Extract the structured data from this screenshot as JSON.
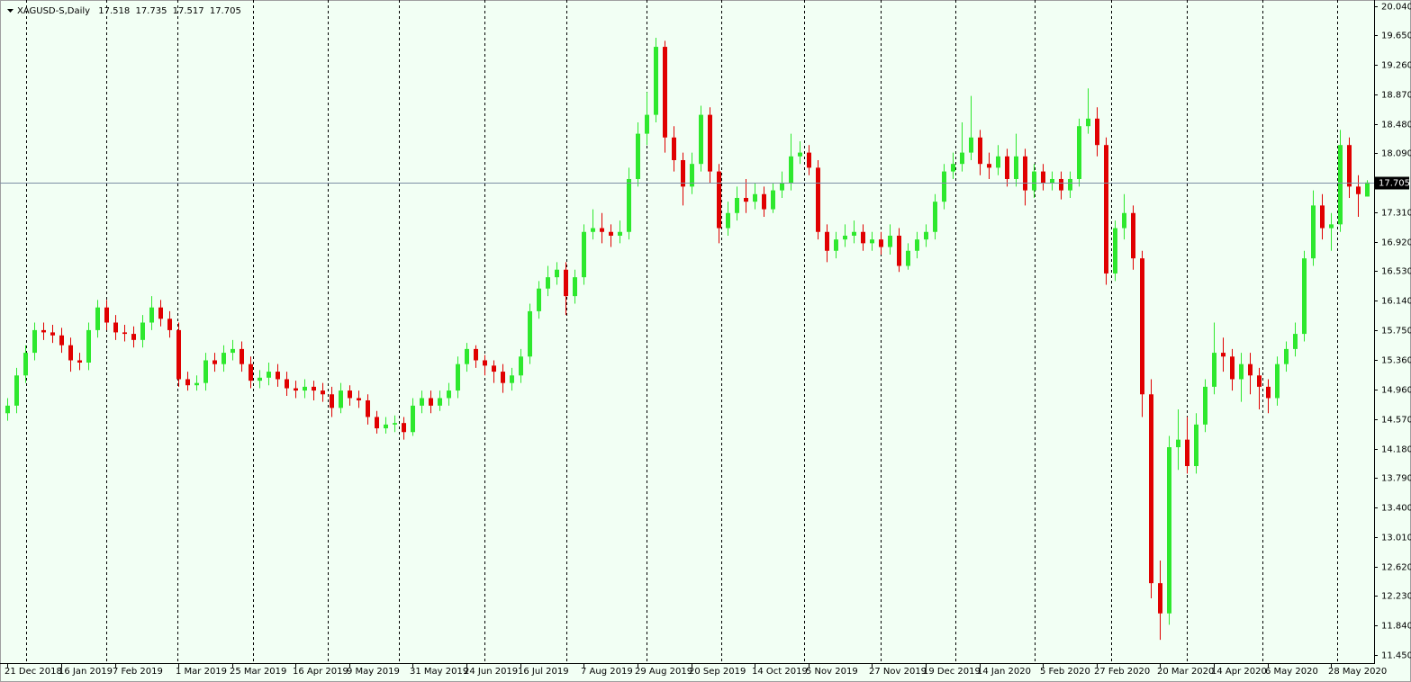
{
  "chart_data": {
    "type": "candlestick",
    "title": "XAGUSD-S,Daily",
    "up_color": "#2ee82e",
    "down_color": "#e00000",
    "price_line_color": "#7d8ea4",
    "ylim": [
      11.33,
      20.12
    ],
    "yticks": [
      {
        "value": 20.04,
        "label": "20.040"
      },
      {
        "value": 19.65,
        "label": "19.650"
      },
      {
        "value": 19.26,
        "label": "19.260"
      },
      {
        "value": 18.87,
        "label": "18.870"
      },
      {
        "value": 18.48,
        "label": "18.480"
      },
      {
        "value": 18.09,
        "label": "18.090"
      },
      {
        "value": 17.31,
        "label": "17.310"
      },
      {
        "value": 16.92,
        "label": "16.920"
      },
      {
        "value": 16.53,
        "label": "16.530"
      },
      {
        "value": 16.14,
        "label": "16.140"
      },
      {
        "value": 15.75,
        "label": "15.750"
      },
      {
        "value": 15.36,
        "label": "15.360"
      },
      {
        "value": 14.96,
        "label": "14.960"
      },
      {
        "value": 14.57,
        "label": "14.570"
      },
      {
        "value": 14.18,
        "label": "14.180"
      },
      {
        "value": 13.79,
        "label": "13.790"
      },
      {
        "value": 13.4,
        "label": "13.400"
      },
      {
        "value": 13.01,
        "label": "13.010"
      },
      {
        "value": 12.62,
        "label": "12.620"
      },
      {
        "value": 12.23,
        "label": "12.230"
      },
      {
        "value": 11.84,
        "label": "11.840"
      },
      {
        "value": 11.45,
        "label": "11.450"
      }
    ],
    "categories": [
      "21 Dec 2018",
      null,
      null,
      null,
      null,
      null,
      "16 Jan 2019",
      null,
      null,
      null,
      null,
      null,
      "7 Feb 2019",
      null,
      null,
      null,
      null,
      null,
      null,
      "1 Mar 2019",
      null,
      null,
      null,
      null,
      null,
      "25 Mar 2019",
      null,
      null,
      null,
      null,
      null,
      null,
      "16 Apr 2019",
      null,
      null,
      null,
      null,
      null,
      "9 May 2019",
      null,
      null,
      null,
      null,
      null,
      null,
      "31 May 2019",
      null,
      null,
      null,
      null,
      null,
      "24 Jun 2019",
      null,
      null,
      null,
      null,
      null,
      "16 Jul 2019",
      null,
      null,
      null,
      null,
      null,
      null,
      "7 Aug 2019",
      null,
      null,
      null,
      null,
      null,
      "29 Aug 2019",
      null,
      null,
      null,
      null,
      null,
      "20 Sep 2019",
      null,
      null,
      null,
      null,
      null,
      null,
      "14 Oct 2019",
      null,
      null,
      null,
      null,
      null,
      "5 Nov 2019",
      null,
      null,
      null,
      null,
      null,
      null,
      "27 Nov 2019",
      null,
      null,
      null,
      null,
      null,
      "19 Dec 2019",
      null,
      null,
      null,
      null,
      null,
      "14 Jan 2020",
      null,
      null,
      null,
      null,
      null,
      null,
      "5 Feb 2020",
      null,
      null,
      null,
      null,
      null,
      "27 Feb 2020",
      null,
      null,
      null,
      null,
      null,
      null,
      "20 Mar 2020",
      null,
      null,
      null,
      null,
      null,
      "14 Apr 2020",
      null,
      null,
      null,
      null,
      null,
      "6 May 2020",
      null,
      null,
      null,
      null,
      null,
      null,
      "28 May 2020",
      null,
      null,
      null,
      null
    ],
    "ohlc": [
      [
        14.65,
        14.85,
        14.55,
        14.75
      ],
      [
        14.75,
        15.25,
        14.65,
        15.15
      ],
      [
        15.15,
        15.55,
        15.05,
        15.45
      ],
      [
        15.45,
        15.85,
        15.35,
        15.75
      ],
      [
        15.75,
        15.85,
        15.62,
        15.72
      ],
      [
        15.72,
        15.82,
        15.58,
        15.68
      ],
      [
        15.68,
        15.78,
        15.45,
        15.55
      ],
      [
        15.55,
        15.65,
        15.2,
        15.35
      ],
      [
        15.35,
        15.45,
        15.22,
        15.32
      ],
      [
        15.32,
        15.85,
        15.22,
        15.75
      ],
      [
        15.75,
        16.15,
        15.65,
        16.05
      ],
      [
        16.05,
        16.15,
        15.75,
        15.85
      ],
      [
        15.85,
        15.95,
        15.62,
        15.72
      ],
      [
        15.72,
        15.82,
        15.6,
        15.7
      ],
      [
        15.7,
        15.8,
        15.52,
        15.62
      ],
      [
        15.62,
        15.95,
        15.52,
        15.85
      ],
      [
        15.85,
        16.2,
        15.75,
        16.05
      ],
      [
        16.05,
        16.15,
        15.8,
        15.9
      ],
      [
        15.9,
        16.0,
        15.65,
        15.75
      ],
      [
        15.75,
        15.85,
        15.0,
        15.1
      ],
      [
        15.1,
        15.2,
        14.95,
        15.02
      ],
      [
        15.02,
        15.15,
        14.95,
        15.05
      ],
      [
        15.05,
        15.45,
        14.95,
        15.35
      ],
      [
        15.35,
        15.45,
        15.2,
        15.3
      ],
      [
        15.3,
        15.55,
        15.2,
        15.45
      ],
      [
        15.45,
        15.62,
        15.35,
        15.5
      ],
      [
        15.5,
        15.6,
        15.2,
        15.3
      ],
      [
        15.3,
        15.4,
        14.98,
        15.08
      ],
      [
        15.08,
        15.22,
        14.98,
        15.12
      ],
      [
        15.12,
        15.32,
        15.02,
        15.2
      ],
      [
        15.2,
        15.3,
        15.0,
        15.1
      ],
      [
        15.1,
        15.2,
        14.88,
        14.98
      ],
      [
        14.98,
        15.08,
        14.85,
        14.95
      ],
      [
        14.95,
        15.1,
        14.85,
        15.0
      ],
      [
        15.0,
        15.08,
        14.82,
        14.95
      ],
      [
        14.95,
        15.05,
        14.8,
        14.9
      ],
      [
        14.9,
        15.0,
        14.6,
        14.72
      ],
      [
        14.72,
        15.05,
        14.65,
        14.95
      ],
      [
        14.95,
        15.02,
        14.75,
        14.85
      ],
      [
        14.85,
        14.95,
        14.72,
        14.82
      ],
      [
        14.82,
        14.9,
        14.5,
        14.6
      ],
      [
        14.6,
        14.68,
        14.38,
        14.45
      ],
      [
        14.45,
        14.6,
        14.38,
        14.5
      ],
      [
        14.5,
        14.62,
        14.4,
        14.52
      ],
      [
        14.52,
        14.6,
        14.3,
        14.4
      ],
      [
        14.4,
        14.85,
        14.35,
        14.75
      ],
      [
        14.75,
        14.95,
        14.65,
        14.85
      ],
      [
        14.85,
        14.95,
        14.65,
        14.75
      ],
      [
        14.75,
        14.95,
        14.68,
        14.85
      ],
      [
        14.85,
        15.05,
        14.75,
        14.95
      ],
      [
        14.95,
        15.4,
        14.85,
        15.3
      ],
      [
        15.3,
        15.58,
        15.2,
        15.5
      ],
      [
        15.5,
        15.55,
        15.25,
        15.35
      ],
      [
        15.35,
        15.42,
        15.15,
        15.28
      ],
      [
        15.28,
        15.35,
        15.05,
        15.2
      ],
      [
        15.2,
        15.3,
        14.92,
        15.05
      ],
      [
        15.05,
        15.25,
        14.95,
        15.15
      ],
      [
        15.15,
        15.5,
        15.05,
        15.4
      ],
      [
        15.4,
        16.1,
        15.3,
        16.0
      ],
      [
        16.0,
        16.4,
        15.9,
        16.3
      ],
      [
        16.3,
        16.6,
        16.2,
        16.45
      ],
      [
        16.45,
        16.65,
        16.35,
        16.55
      ],
      [
        16.55,
        16.65,
        15.95,
        16.2
      ],
      [
        16.2,
        16.55,
        16.1,
        16.45
      ],
      [
        16.45,
        17.15,
        16.35,
        17.05
      ],
      [
        17.05,
        17.35,
        16.95,
        17.1
      ],
      [
        17.1,
        17.3,
        16.9,
        17.05
      ],
      [
        17.05,
        17.15,
        16.85,
        17.0
      ],
      [
        17.0,
        17.2,
        16.9,
        17.05
      ],
      [
        17.05,
        17.9,
        16.95,
        17.75
      ],
      [
        17.75,
        18.5,
        17.65,
        18.35
      ],
      [
        18.35,
        18.9,
        18.2,
        18.6
      ],
      [
        18.6,
        19.62,
        18.5,
        19.5
      ],
      [
        19.5,
        19.58,
        18.1,
        18.3
      ],
      [
        18.3,
        18.45,
        17.85,
        18.0
      ],
      [
        18.0,
        18.1,
        17.4,
        17.65
      ],
      [
        17.65,
        18.1,
        17.55,
        17.95
      ],
      [
        17.95,
        18.72,
        17.85,
        18.6
      ],
      [
        18.6,
        18.7,
        17.7,
        17.85
      ],
      [
        17.85,
        17.95,
        16.9,
        17.1
      ],
      [
        17.1,
        17.45,
        17.0,
        17.3
      ],
      [
        17.3,
        17.65,
        17.2,
        17.5
      ],
      [
        17.5,
        17.75,
        17.3,
        17.45
      ],
      [
        17.45,
        17.7,
        17.35,
        17.55
      ],
      [
        17.55,
        17.65,
        17.25,
        17.35
      ],
      [
        17.35,
        17.7,
        17.3,
        17.6
      ],
      [
        17.6,
        17.85,
        17.5,
        17.7
      ],
      [
        17.7,
        18.35,
        17.6,
        18.05
      ],
      [
        18.05,
        18.25,
        17.95,
        18.1
      ],
      [
        18.1,
        18.2,
        17.8,
        17.9
      ],
      [
        17.9,
        18.0,
        16.95,
        17.05
      ],
      [
        17.05,
        17.15,
        16.65,
        16.8
      ],
      [
        16.8,
        17.05,
        16.7,
        16.95
      ],
      [
        16.95,
        17.15,
        16.85,
        17.0
      ],
      [
        17.0,
        17.2,
        16.9,
        17.05
      ],
      [
        17.05,
        17.15,
        16.8,
        16.9
      ],
      [
        16.9,
        17.05,
        16.8,
        16.95
      ],
      [
        16.95,
        17.05,
        16.75,
        16.85
      ],
      [
        16.85,
        17.15,
        16.75,
        17.0
      ],
      [
        17.0,
        17.1,
        16.52,
        16.6
      ],
      [
        16.6,
        16.9,
        16.55,
        16.8
      ],
      [
        16.8,
        17.05,
        16.7,
        16.95
      ],
      [
        16.95,
        17.15,
        16.85,
        17.05
      ],
      [
        17.05,
        17.55,
        16.95,
        17.45
      ],
      [
        17.45,
        17.95,
        17.35,
        17.85
      ],
      [
        17.85,
        18.1,
        17.75,
        17.95
      ],
      [
        17.95,
        18.5,
        17.85,
        18.1
      ],
      [
        18.1,
        18.85,
        18.0,
        18.3
      ],
      [
        18.3,
        18.4,
        17.8,
        17.95
      ],
      [
        17.95,
        18.1,
        17.75,
        17.9
      ],
      [
        17.9,
        18.2,
        17.8,
        18.05
      ],
      [
        18.05,
        18.15,
        17.65,
        17.75
      ],
      [
        17.75,
        18.35,
        17.65,
        18.05
      ],
      [
        18.05,
        18.15,
        17.4,
        17.6
      ],
      [
        17.6,
        17.95,
        17.5,
        17.85
      ],
      [
        17.85,
        17.95,
        17.6,
        17.7
      ],
      [
        17.7,
        17.85,
        17.6,
        17.75
      ],
      [
        17.75,
        17.85,
        17.48,
        17.6
      ],
      [
        17.6,
        17.85,
        17.5,
        17.75
      ],
      [
        17.75,
        18.55,
        17.65,
        18.45
      ],
      [
        18.45,
        18.95,
        18.35,
        18.55
      ],
      [
        18.55,
        18.7,
        18.05,
        18.2
      ],
      [
        18.2,
        18.3,
        16.35,
        16.5
      ],
      [
        16.5,
        17.2,
        16.4,
        17.1
      ],
      [
        17.1,
        17.55,
        16.95,
        17.3
      ],
      [
        17.3,
        17.4,
        16.55,
        16.7
      ],
      [
        16.7,
        16.8,
        14.6,
        14.9
      ],
      [
        14.9,
        15.1,
        12.2,
        12.4
      ],
      [
        12.4,
        12.7,
        11.65,
        12.0
      ],
      [
        12.0,
        14.35,
        11.85,
        14.2
      ],
      [
        14.2,
        14.7,
        13.9,
        14.3
      ],
      [
        14.3,
        14.6,
        13.85,
        13.95
      ],
      [
        13.95,
        14.65,
        13.85,
        14.5
      ],
      [
        14.5,
        15.1,
        14.4,
        15.0
      ],
      [
        15.0,
        15.85,
        14.9,
        15.45
      ],
      [
        15.45,
        15.65,
        15.2,
        15.4
      ],
      [
        15.4,
        15.5,
        14.95,
        15.1
      ],
      [
        15.1,
        15.45,
        14.8,
        15.3
      ],
      [
        15.3,
        15.45,
        14.9,
        15.15
      ],
      [
        15.15,
        15.25,
        14.7,
        15.0
      ],
      [
        15.0,
        15.1,
        14.65,
        14.85
      ],
      [
        14.85,
        15.4,
        14.75,
        15.3
      ],
      [
        15.3,
        15.6,
        15.2,
        15.5
      ],
      [
        15.5,
        15.85,
        15.4,
        15.7
      ],
      [
        15.7,
        16.8,
        15.6,
        16.7
      ],
      [
        16.7,
        17.6,
        16.6,
        17.4
      ],
      [
        17.4,
        17.55,
        16.95,
        17.1
      ],
      [
        17.1,
        17.3,
        16.8,
        17.15
      ],
      [
        17.15,
        18.4,
        17.05,
        18.2
      ],
      [
        18.2,
        18.3,
        17.5,
        17.65
      ],
      [
        17.65,
        17.8,
        17.25,
        17.55
      ],
      [
        17.518,
        17.735,
        17.517,
        17.705
      ]
    ]
  }
}
